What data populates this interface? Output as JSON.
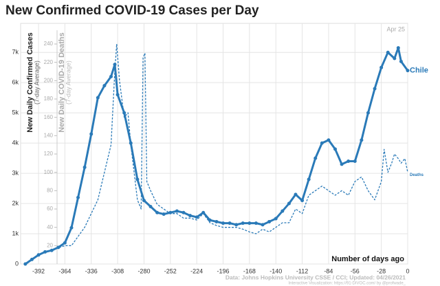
{
  "chart_data": {
    "type": "line",
    "title": "New Confirmed COVID-19 Cases per Day",
    "y_label": "New Daily Confirmed Cases",
    "y_sublabel": "(7-day Average)",
    "y2_label": "New Daily COVID-19 Deaths",
    "y2_sublabel": "(7-day Average)",
    "x_label": "Number of days ago",
    "date_annotation": "Apr 25",
    "source": "Data: Johns Hopkins University CSSE / CCI; Updated: 04/26/2021",
    "credit": "Interactive Visualization: https://91-DIVOC.com/ by @profwade_",
    "xlim": [
      -411,
      0
    ],
    "xticks": [
      -392,
      -364,
      -336,
      -308,
      -280,
      -252,
      -224,
      -196,
      -168,
      -140,
      -112,
      -84,
      -56,
      -28,
      0
    ],
    "ylim": [
      0,
      7960
    ],
    "yticks": [
      0,
      {
        "value": 1000,
        "label": "1k"
      },
      {
        "value": 2000,
        "label": "2k"
      },
      {
        "value": 3000,
        "label": "3k"
      },
      {
        "value": 4000,
        "label": "4k"
      },
      {
        "value": 5000,
        "label": "5k"
      },
      {
        "value": 6000,
        "label": "6k"
      },
      {
        "value": 7000,
        "label": "7k"
      }
    ],
    "y2lim": [
      0,
      262.5
    ],
    "y2ticks": [
      20,
      40,
      60,
      80,
      100,
      120,
      140,
      160,
      180,
      200,
      220,
      240
    ],
    "grid": true,
    "series": [
      {
        "name": "Chile",
        "color": "#2a7ab8",
        "x": [
          -406,
          -399,
          -392,
          -385,
          -378,
          -371,
          -364,
          -357,
          -350,
          -343,
          -336,
          -329,
          -322,
          -315,
          -311,
          -308,
          -301,
          -294,
          -287,
          -280,
          -273,
          -266,
          -259,
          -252,
          -245,
          -238,
          -231,
          -224,
          -217,
          -210,
          -203,
          -196,
          -189,
          -182,
          -175,
          -168,
          -161,
          -154,
          -147,
          -140,
          -133,
          -126,
          -119,
          -112,
          -105,
          -98,
          -91,
          -84,
          -77,
          -70,
          -63,
          -56,
          -49,
          -42,
          -35,
          -28,
          -21,
          -14,
          -10,
          -7,
          0
        ],
        "values": [
          0,
          150,
          300,
          400,
          450,
          550,
          700,
          1200,
          2200,
          3200,
          4300,
          5500,
          5900,
          6200,
          6600,
          5600,
          5000,
          4000,
          2800,
          2100,
          1900,
          1700,
          1650,
          1700,
          1750,
          1700,
          1600,
          1550,
          1700,
          1450,
          1400,
          1350,
          1350,
          1300,
          1350,
          1350,
          1350,
          1300,
          1400,
          1500,
          1750,
          2000,
          2300,
          2100,
          2800,
          3500,
          4000,
          4100,
          3800,
          3300,
          3400,
          3400,
          4100,
          5000,
          5800,
          6500,
          7000,
          6800,
          7150,
          6700,
          6400
        ]
      },
      {
        "name": "Deaths",
        "color": "#2a7ab8",
        "axis": "y2",
        "x": [
          -406,
          -392,
          -378,
          -364,
          -357,
          -350,
          -343,
          -336,
          -329,
          -322,
          -315,
          -311,
          -309,
          -306,
          -301,
          -297,
          -294,
          -287,
          -283,
          -281,
          -279,
          -277,
          -273,
          -266,
          -259,
          -252,
          -245,
          -238,
          -231,
          -224,
          -217,
          -210,
          -203,
          -196,
          -189,
          -182,
          -175,
          -168,
          -161,
          -154,
          -147,
          -140,
          -133,
          -126,
          -119,
          -112,
          -105,
          -98,
          -91,
          -84,
          -77,
          -70,
          -63,
          -56,
          -49,
          -42,
          -35,
          -28,
          -25,
          -21,
          -17,
          -14,
          -10,
          -7,
          -3,
          0
        ],
        "values": [
          0,
          10,
          15,
          20,
          20,
          30,
          40,
          55,
          70,
          100,
          130,
          210,
          240,
          200,
          160,
          165,
          130,
          70,
          60,
          225,
          230,
          90,
          80,
          65,
          60,
          55,
          55,
          50,
          50,
          48,
          55,
          45,
          42,
          40,
          40,
          40,
          38,
          35,
          33,
          38,
          35,
          40,
          45,
          45,
          60,
          55,
          75,
          80,
          85,
          80,
          75,
          80,
          75,
          90,
          95,
          80,
          70,
          90,
          125,
          100,
          110,
          120,
          115,
          110,
          115,
          100
        ]
      }
    ]
  }
}
